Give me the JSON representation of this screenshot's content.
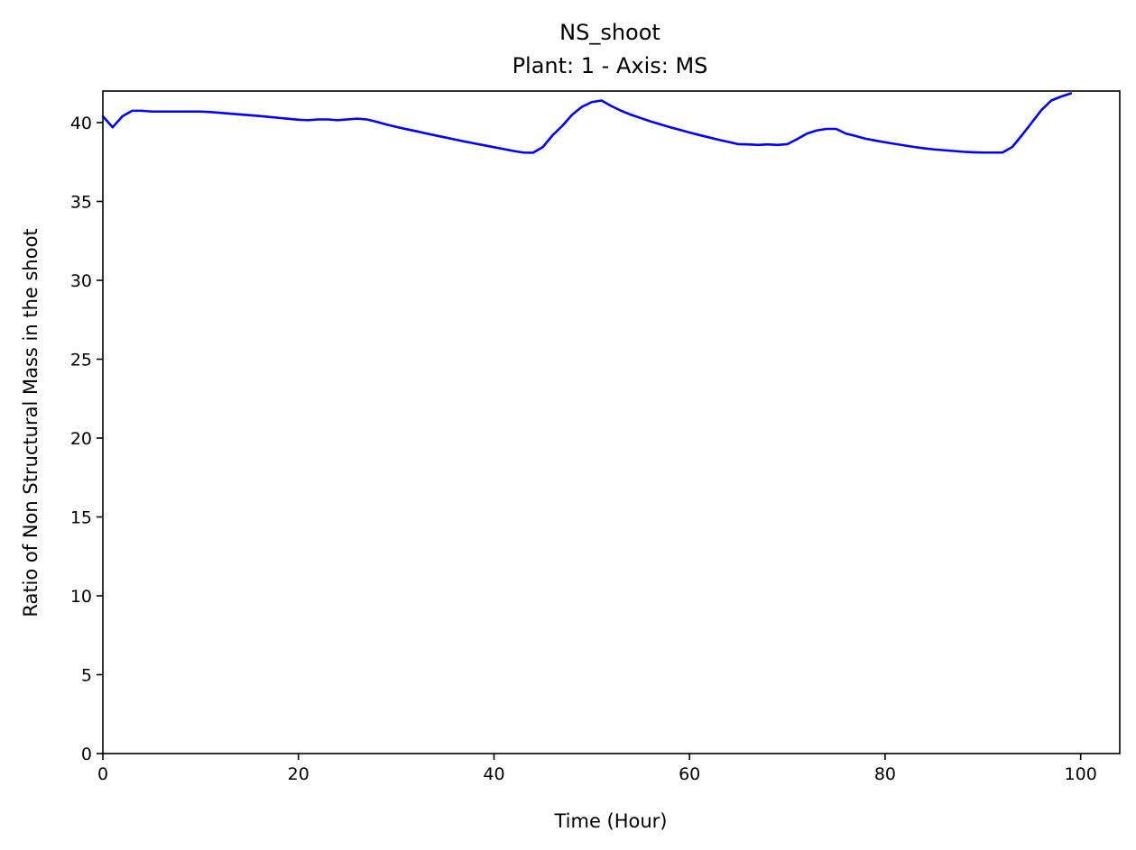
{
  "chart_data": {
    "type": "line",
    "title": "NS_shoot",
    "subtitle": "Plant: 1 - Axis: MS",
    "xlabel": "Time (Hour)",
    "ylabel": "Ratio of Non Structural Mass in the shoot",
    "xlim": [
      0,
      104
    ],
    "ylim": [
      0,
      42
    ],
    "xticks": [
      "0",
      "20",
      "40",
      "60",
      "80",
      "100"
    ],
    "yticks": [
      "0",
      "5",
      "10",
      "15",
      "20",
      "25",
      "30",
      "35",
      "40"
    ],
    "grid": false,
    "legend": "none",
    "series": [
      {
        "color": "#0000ff",
        "x": [
          0,
          1,
          2,
          3,
          4,
          5,
          6,
          7,
          8,
          9,
          10,
          11,
          12,
          13,
          14,
          15,
          16,
          17,
          18,
          19,
          20,
          21,
          22,
          23,
          24,
          25,
          26,
          27,
          28,
          29,
          30,
          31,
          32,
          33,
          34,
          35,
          36,
          37,
          38,
          39,
          40,
          41,
          42,
          43,
          44,
          45,
          46,
          47,
          48,
          49,
          50,
          51,
          52,
          53,
          54,
          55,
          56,
          57,
          58,
          59,
          60,
          61,
          62,
          63,
          64,
          65,
          66,
          67,
          68,
          69,
          70,
          71,
          72,
          73,
          74,
          75,
          76,
          77,
          78,
          79,
          80,
          81,
          82,
          83,
          84,
          85,
          86,
          87,
          88,
          89,
          90,
          91,
          92,
          93,
          94,
          95,
          96,
          97,
          98,
          99
        ],
        "y": [
          40.4,
          39.7,
          40.4,
          40.75,
          40.75,
          40.7,
          40.7,
          40.7,
          40.7,
          40.7,
          40.7,
          40.67,
          40.62,
          40.57,
          40.52,
          40.47,
          40.42,
          40.36,
          40.3,
          40.24,
          40.18,
          40.15,
          40.2,
          40.2,
          40.15,
          40.2,
          40.25,
          40.2,
          40.05,
          39.88,
          39.73,
          39.59,
          39.46,
          39.32,
          39.19,
          39.06,
          38.93,
          38.8,
          38.68,
          38.56,
          38.44,
          38.32,
          38.2,
          38.1,
          38.09,
          38.45,
          39.2,
          39.8,
          40.5,
          41.0,
          41.3,
          41.4,
          41.05,
          40.75,
          40.5,
          40.29,
          40.08,
          39.89,
          39.71,
          39.54,
          39.37,
          39.21,
          39.06,
          38.91,
          38.77,
          38.63,
          38.62,
          38.58,
          38.62,
          38.58,
          38.63,
          38.95,
          39.3,
          39.5,
          39.6,
          39.6,
          39.3,
          39.15,
          38.98,
          38.86,
          38.75,
          38.65,
          38.55,
          38.45,
          38.37,
          38.3,
          38.25,
          38.2,
          38.15,
          38.12,
          38.1,
          38.1,
          38.1,
          38.45,
          39.2,
          40.0,
          40.8,
          41.4,
          41.65,
          41.85
        ]
      }
    ]
  }
}
